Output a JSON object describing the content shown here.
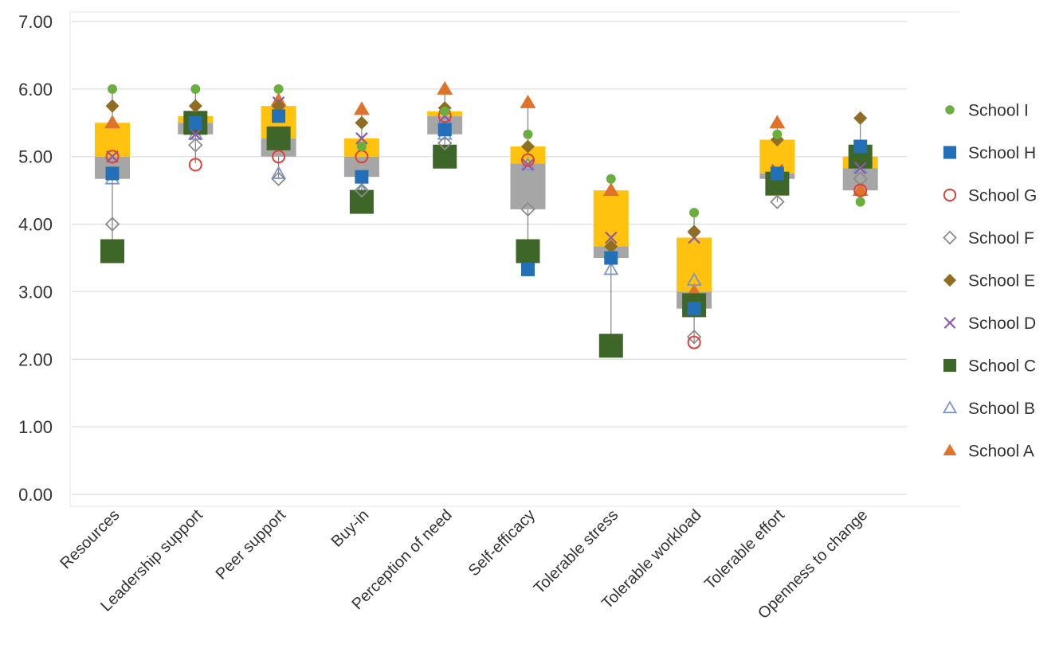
{
  "chart_data": {
    "type": "scatter",
    "title": "",
    "xlabel": "",
    "ylabel": "",
    "ylim": [
      0,
      7
    ],
    "yticks": [
      "0.00",
      "1.00",
      "2.00",
      "3.00",
      "4.00",
      "5.00",
      "6.00",
      "7.00"
    ],
    "grid": true,
    "legend_position": "right",
    "categories": [
      "Resources",
      "Leadership support",
      "Peer support",
      "Buy-in",
      "Perception of need",
      "Self-efficacy",
      "Tolerable stress",
      "Tolerable workload",
      "Tolerable effort",
      "Openness to change"
    ],
    "boxes": [
      {
        "min": 3.6,
        "q1": 4.67,
        "median": 5.0,
        "q3": 5.5,
        "max": 6.0
      },
      {
        "min": 4.9,
        "q1": 5.33,
        "median": 5.5,
        "q3": 5.6,
        "max": 6.0
      },
      {
        "min": 4.67,
        "q1": 5.0,
        "median": 5.27,
        "q3": 5.75,
        "max": 6.0
      },
      {
        "min": 4.33,
        "q1": 4.7,
        "median": 5.0,
        "q3": 5.27,
        "max": 5.7
      },
      {
        "min": 5.0,
        "q1": 5.33,
        "median": 5.6,
        "q3": 5.67,
        "max": 6.0
      },
      {
        "min": 3.33,
        "q1": 4.22,
        "median": 4.9,
        "q3": 5.15,
        "max": 5.8
      },
      {
        "min": 2.2,
        "q1": 3.5,
        "median": 3.67,
        "q3": 4.5,
        "max": 4.67
      },
      {
        "min": 2.25,
        "q1": 2.75,
        "median": 3.0,
        "q3": 3.8,
        "max": 4.17
      },
      {
        "min": 4.33,
        "q1": 4.67,
        "median": 4.75,
        "q3": 5.25,
        "max": 5.5
      },
      {
        "min": 4.33,
        "q1": 4.5,
        "median": 4.83,
        "q3": 5.0,
        "max": 5.57
      }
    ],
    "box_colors": {
      "upper": "#FFC20E",
      "lower": "#A6A6A6",
      "whisker": "#808080"
    },
    "series": [
      {
        "name": "School I",
        "marker": "circle",
        "color": "#6AAE3F",
        "values": [
          6.0,
          6.0,
          6.0,
          5.15,
          5.67,
          5.33,
          4.67,
          4.17,
          5.33,
          4.33
        ]
      },
      {
        "name": "School H",
        "marker": "square",
        "color": "#2470B8",
        "values": [
          4.75,
          5.5,
          5.6,
          4.7,
          5.4,
          3.33,
          3.5,
          2.75,
          4.75,
          5.15
        ]
      },
      {
        "name": "School G",
        "marker": "circle-open",
        "color": "#E0403A",
        "values": [
          5.0,
          4.88,
          5.0,
          5.0,
          5.6,
          4.95,
          3.5,
          2.25,
          4.75,
          4.5
        ]
      },
      {
        "name": "School F",
        "marker": "diamond-open",
        "color": "#8C8C8C",
        "values": [
          4.0,
          5.17,
          4.67,
          4.5,
          5.2,
          4.22,
          3.5,
          2.33,
          4.33,
          4.67
        ]
      },
      {
        "name": "School E",
        "marker": "diamond",
        "color": "#8F6E23",
        "values": [
          5.75,
          5.75,
          5.75,
          5.5,
          5.72,
          5.15,
          3.67,
          3.89,
          5.25,
          5.57
        ]
      },
      {
        "name": "School D",
        "marker": "x",
        "color": "#8A5BAA",
        "values": [
          5.0,
          5.33,
          5.8,
          5.27,
          5.6,
          4.88,
          3.8,
          3.8,
          4.8,
          4.83
        ]
      },
      {
        "name": "School C",
        "marker": "square-large",
        "color": "#3E6629",
        "values": [
          3.6,
          5.5,
          5.27,
          4.33,
          5.0,
          3.6,
          2.2,
          2.8,
          4.6,
          5.0
        ]
      },
      {
        "name": "School B",
        "marker": "triangle-open",
        "color": "#7A96CC",
        "values": [
          4.67,
          5.33,
          4.75,
          4.5,
          5.33,
          4.88,
          3.33,
          3.17,
          4.67,
          4.83
        ]
      },
      {
        "name": "School A",
        "marker": "triangle",
        "color": "#E0732C",
        "values": [
          5.5,
          5.5,
          5.83,
          5.7,
          6.0,
          5.8,
          4.5,
          3.0,
          5.5,
          4.5
        ]
      }
    ]
  }
}
